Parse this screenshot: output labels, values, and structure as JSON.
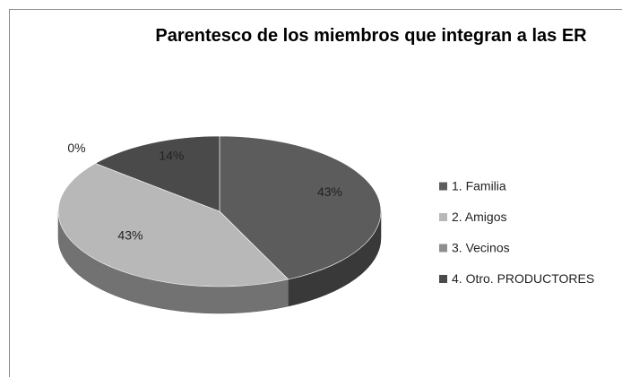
{
  "chart_data": {
    "type": "pie3d",
    "title": "Parentesco de los miembros que integran a las ER",
    "categories": [
      "1. Familia",
      "2. Amigos",
      "3. Vecinos",
      "4. Otro. PRODUCTORES"
    ],
    "values": [
      43,
      43,
      0,
      14
    ],
    "value_labels": [
      "43%",
      "43%",
      "0%",
      "14%"
    ],
    "colors": [
      "#5c5c5c",
      "#b8b8b8",
      "#8e8e8e",
      "#4a4a4a"
    ],
    "legend": "right"
  }
}
